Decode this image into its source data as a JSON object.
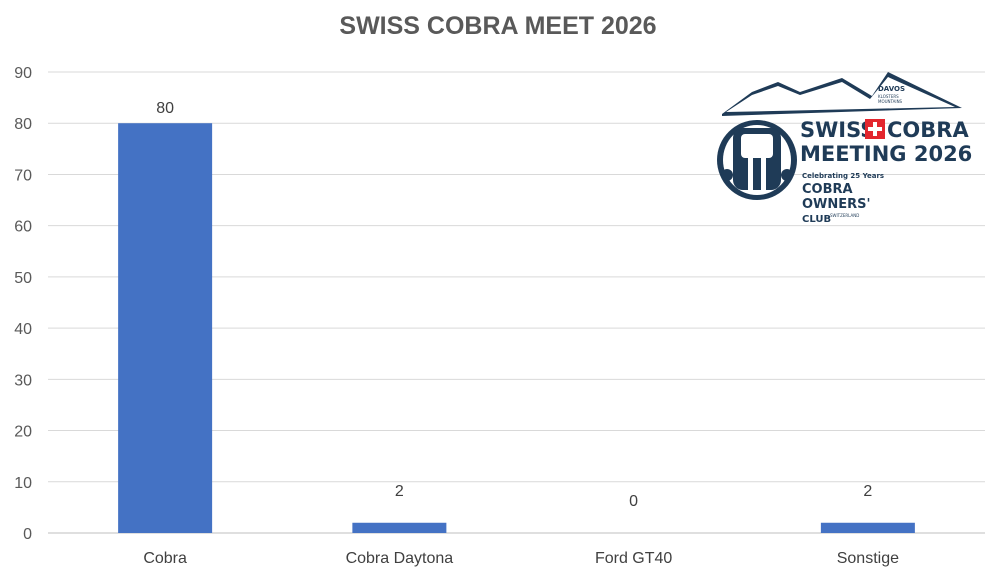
{
  "chart_data": {
    "type": "bar",
    "title": "SWISS COBRA MEET 2026",
    "categories": [
      "Cobra",
      "Cobra Daytona",
      "Ford GT40",
      "Sonstige"
    ],
    "values": [
      80,
      2,
      0,
      2
    ],
    "ylim": [
      0,
      90
    ],
    "yticks": [
      0,
      10,
      20,
      30,
      40,
      50,
      60,
      70,
      80,
      90
    ],
    "grid": true,
    "bar_color": "#4472c4",
    "data_labels": true
  },
  "logo": {
    "line1_left": "SWISS",
    "line1_right": "COBRA",
    "line2": "MEETING 2026",
    "tagline": "Celebrating 25 Years",
    "club_line1": "COBRA",
    "club_line2": "OWNERS'",
    "club_line3": "CLUB",
    "club_country": "SWITZERLAND",
    "davos": "DAVOS",
    "klosters": "KLOSTERS",
    "mountains": "MOUNTAINS",
    "brand_color": "#1f3b57",
    "cross_color": "#e3262e"
  }
}
